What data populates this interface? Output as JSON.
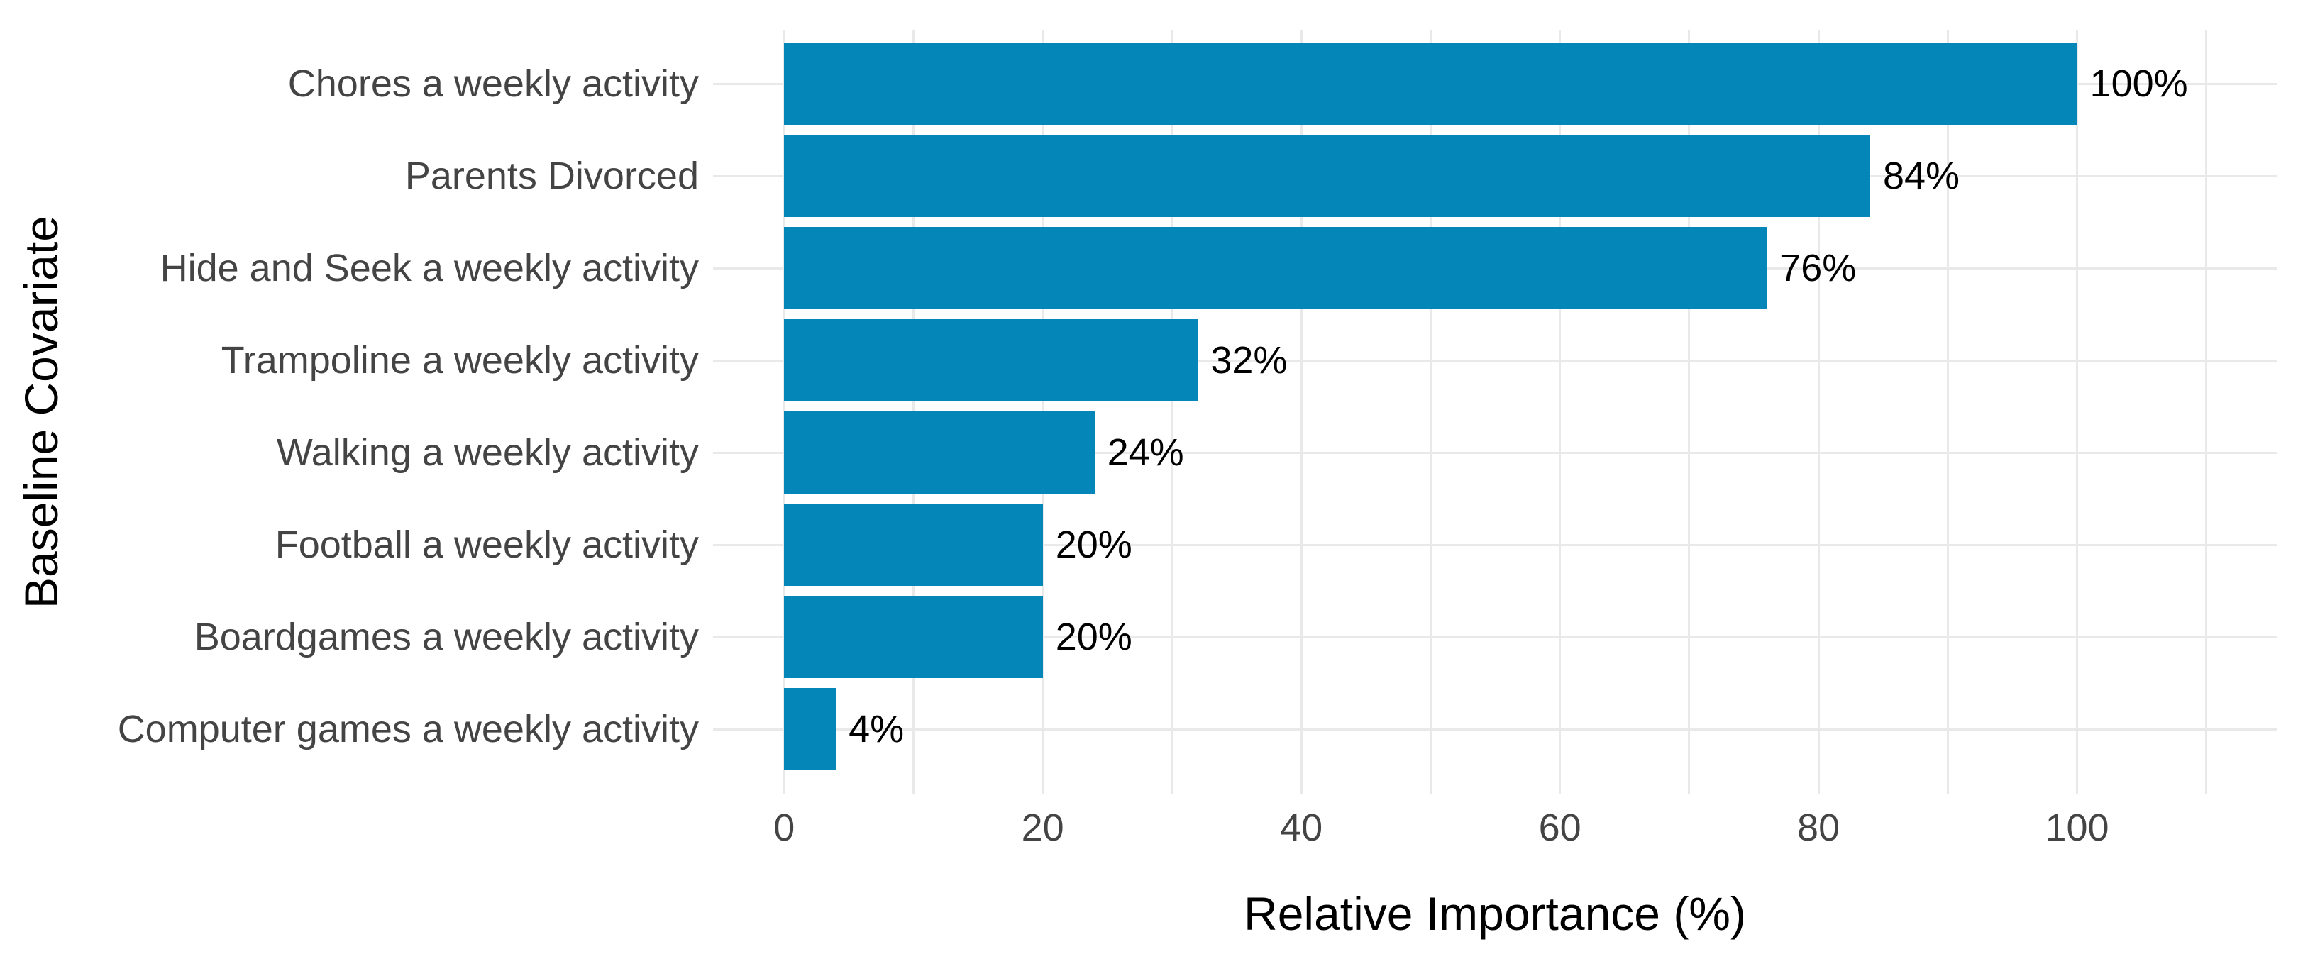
{
  "chart_data": {
    "type": "bar",
    "orientation": "horizontal",
    "xlabel": "Relative Importance (%)",
    "ylabel": "Baseline Covariate",
    "categories": [
      "Chores a weekly activity",
      "Parents Divorced",
      "Hide and Seek a weekly activity",
      "Trampoline a weekly activity",
      "Walking a weekly activity",
      "Football a weekly activity",
      "Boardgames a weekly activity",
      "Computer games a weekly activity"
    ],
    "values": [
      100,
      84,
      76,
      32,
      24,
      20,
      20,
      4
    ],
    "value_labels": [
      "100%",
      "84%",
      "76%",
      "32%",
      "24%",
      "20%",
      "20%",
      "4%"
    ],
    "xticks": [
      0,
      20,
      40,
      60,
      80,
      100
    ],
    "xtick_labels": [
      "0",
      "20",
      "40",
      "60",
      "80",
      "100"
    ],
    "xlim": [
      -5.5,
      115.5
    ],
    "grid_step": 10,
    "grid_max": 110,
    "grid": "on",
    "legend": "none",
    "colors": {
      "bar": "#0586B8",
      "grid": "#E9E9E9",
      "axis_text": "#444444",
      "value_text": "#000000",
      "title_text": "#000000",
      "background": "#FFFFFF"
    }
  }
}
